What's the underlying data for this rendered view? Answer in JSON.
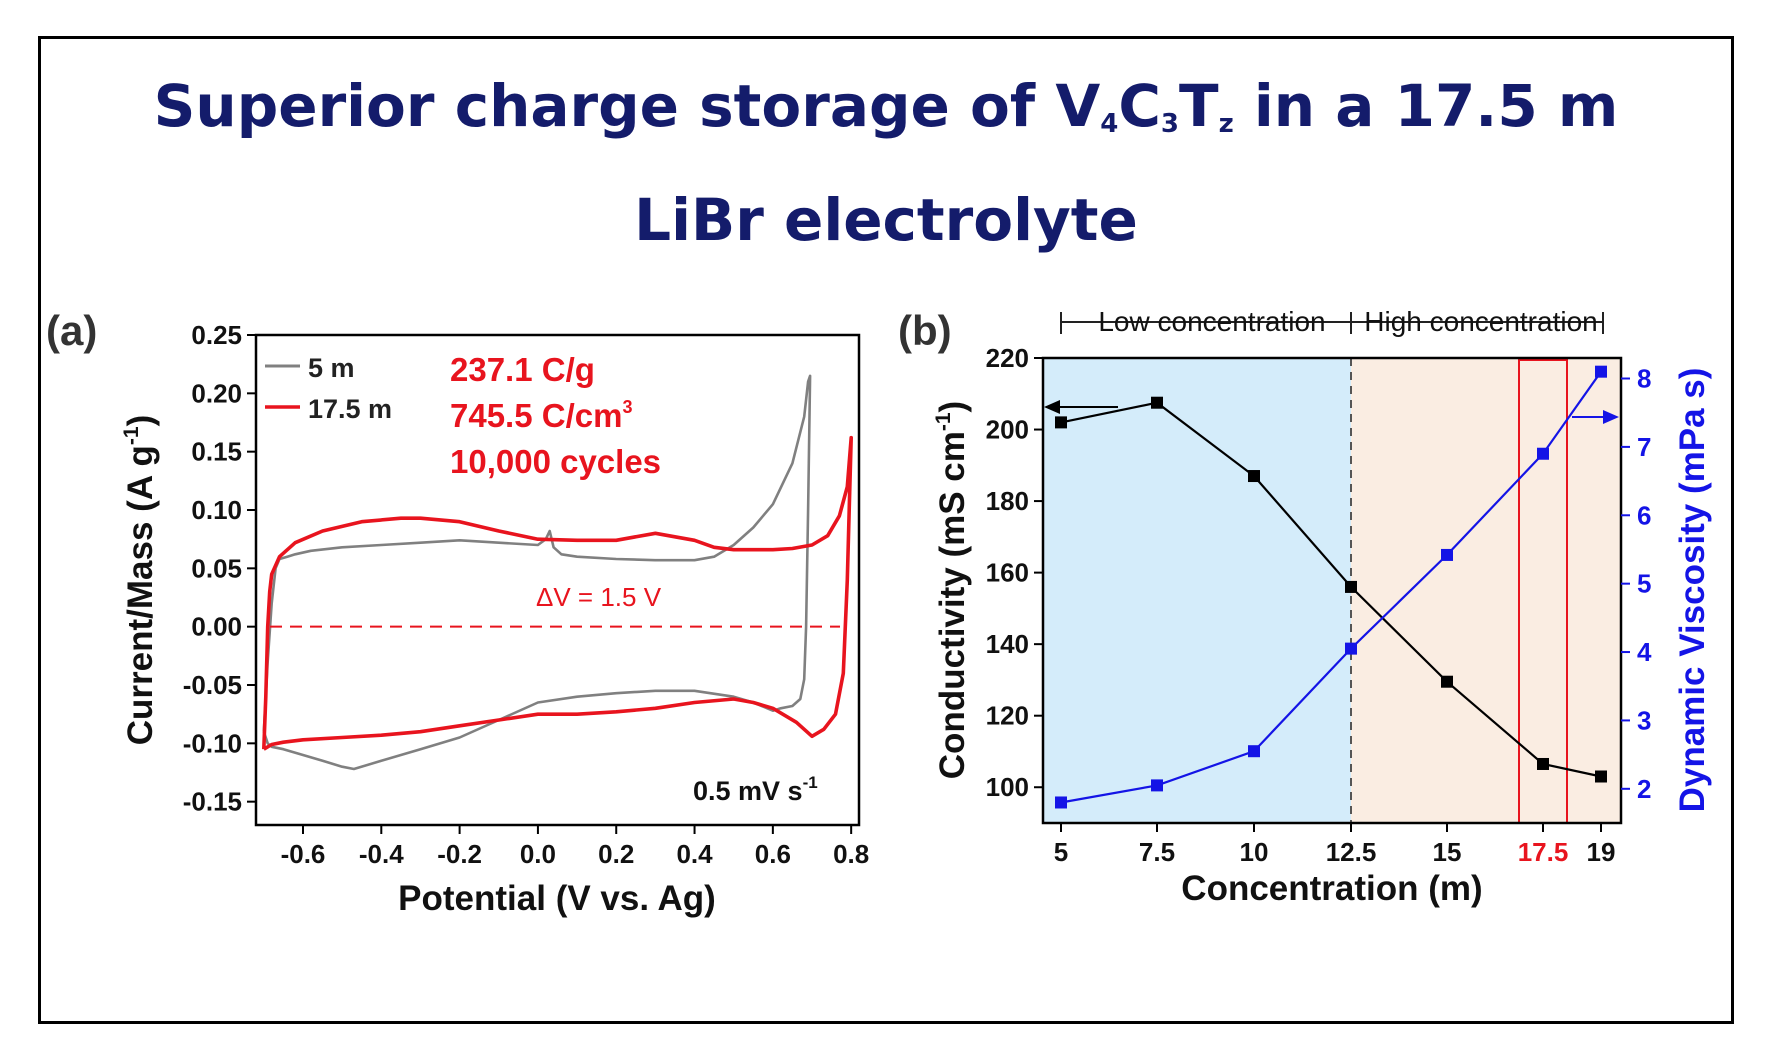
{
  "title": {
    "line1_pre": "Superior charge storage  of V",
    "sub1": "4",
    "mid1": "C",
    "sub2": "3",
    "mid2": "T",
    "sub3": "z",
    "line1_post": " in a 17.5 m",
    "line2": "LiBr electrolyte"
  },
  "colors": {
    "title": "#141c6b",
    "series_5m": "#808080",
    "series_17_5m": "#e8141e",
    "conductivity": "#000000",
    "viscosity": "#1414e6",
    "low_region": "#d4ecfa",
    "high_region": "#faede2",
    "highlight_box": "#e8141e"
  },
  "chart_data": [
    {
      "type": "line",
      "panel_label": "(a)",
      "xlabel": "Potential (V vs. Ag)",
      "ylabel": "Current/Mass (A g",
      "ylabel_sup": "-1",
      "ylabel_end": ")",
      "xlim": [
        -0.72,
        0.82
      ],
      "ylim": [
        -0.17,
        0.25
      ],
      "xticks": [
        "-0.6",
        "-0.4",
        "-0.2",
        "0.0",
        "0.2",
        "0.4",
        "0.6",
        "0.8"
      ],
      "yticks": [
        "0.25",
        "0.20",
        "0.15",
        "0.10",
        "0.05",
        "0.00",
        "-0.05",
        "-0.10",
        "-0.15"
      ],
      "legend": [
        "5 m",
        "17.5 m"
      ],
      "annotations": {
        "capacity_g": "237.1 C/g",
        "capacity_cm": "745.5 C/cm",
        "capacity_cm_sup": "3",
        "cycles": "10,000 cycles",
        "window": "ΔV = 1.5 V",
        "scan_rate": "0.5 mV s",
        "scan_rate_sup": "-1"
      },
      "series": [
        {
          "name": "5 m",
          "x": [
            -0.7,
            -0.69,
            -0.68,
            -0.67,
            -0.66,
            -0.64,
            -0.62,
            -0.58,
            -0.5,
            -0.4,
            -0.3,
            -0.2,
            -0.1,
            0.0,
            0.02,
            0.03,
            0.04,
            0.06,
            0.1,
            0.2,
            0.3,
            0.4,
            0.45,
            0.5,
            0.55,
            0.6,
            0.65,
            0.68,
            0.69,
            0.695,
            0.69,
            0.685,
            0.68,
            0.67,
            0.65,
            0.62,
            0.6,
            0.55,
            0.5,
            0.4,
            0.3,
            0.2,
            0.1,
            0.0,
            -0.1,
            -0.2,
            -0.3,
            -0.4,
            -0.47,
            -0.5,
            -0.55,
            -0.6,
            -0.65,
            -0.68,
            -0.69,
            -0.7
          ],
          "y": [
            -0.09,
            -0.03,
            0.02,
            0.05,
            0.058,
            0.06,
            0.062,
            0.065,
            0.068,
            0.07,
            0.072,
            0.074,
            0.072,
            0.07,
            0.075,
            0.082,
            0.068,
            0.062,
            0.06,
            0.058,
            0.057,
            0.057,
            0.06,
            0.07,
            0.085,
            0.105,
            0.14,
            0.18,
            0.21,
            0.215,
            0.1,
            0.0,
            -0.045,
            -0.062,
            -0.068,
            -0.07,
            -0.072,
            -0.065,
            -0.06,
            -0.055,
            -0.055,
            -0.057,
            -0.06,
            -0.065,
            -0.08,
            -0.095,
            -0.105,
            -0.115,
            -0.122,
            -0.12,
            -0.115,
            -0.11,
            -0.105,
            -0.103,
            -0.1,
            -0.09
          ]
        },
        {
          "name": "17.5 m",
          "x": [
            -0.7,
            -0.695,
            -0.69,
            -0.685,
            -0.68,
            -0.66,
            -0.62,
            -0.55,
            -0.45,
            -0.35,
            -0.3,
            -0.2,
            -0.1,
            0.0,
            0.1,
            0.2,
            0.3,
            0.4,
            0.45,
            0.5,
            0.6,
            0.65,
            0.7,
            0.74,
            0.77,
            0.79,
            0.8,
            0.795,
            0.79,
            0.785,
            0.78,
            0.76,
            0.73,
            0.7,
            0.66,
            0.6,
            0.55,
            0.5,
            0.4,
            0.3,
            0.2,
            0.1,
            0.0,
            -0.1,
            -0.2,
            -0.3,
            -0.4,
            -0.5,
            -0.6,
            -0.65,
            -0.68,
            -0.7
          ],
          "y": [
            -0.105,
            -0.06,
            0.0,
            0.03,
            0.045,
            0.06,
            0.072,
            0.082,
            0.09,
            0.093,
            0.093,
            0.09,
            0.082,
            0.075,
            0.074,
            0.074,
            0.08,
            0.074,
            0.068,
            0.066,
            0.066,
            0.067,
            0.07,
            0.078,
            0.095,
            0.12,
            0.162,
            0.1,
            0.04,
            0.0,
            -0.04,
            -0.075,
            -0.088,
            -0.094,
            -0.082,
            -0.07,
            -0.065,
            -0.062,
            -0.065,
            -0.07,
            -0.073,
            -0.075,
            -0.075,
            -0.08,
            -0.085,
            -0.09,
            -0.093,
            -0.095,
            -0.097,
            -0.099,
            -0.101,
            -0.105
          ]
        }
      ]
    },
    {
      "type": "line",
      "panel_label": "(b)",
      "xlabel": "Concentration (m)",
      "ylabel_left": "Conductivity (mS cm",
      "ylabel_left_sup": "-1",
      "ylabel_left_end": ")",
      "ylabel_right": "Dynamic Viscosity (mPa s)",
      "x_ticks": [
        "5",
        "7.5",
        "10",
        "12.5",
        "15",
        "17.5",
        "19"
      ],
      "ylim_left": [
        90,
        220
      ],
      "ylim_right": [
        1.5,
        8.3
      ],
      "yticks_left": [
        "220",
        "200",
        "180",
        "160",
        "140",
        "120",
        "100"
      ],
      "yticks_right": [
        "8",
        "7",
        "6",
        "5",
        "4",
        "3",
        "2"
      ],
      "regions": [
        "Low concentration",
        "High concentration"
      ],
      "highlight_tick": "17.5",
      "series": [
        {
          "name": "Conductivity",
          "axis": "left",
          "x": [
            5,
            7.5,
            10,
            12.5,
            15,
            17.5,
            19
          ],
          "values": [
            202,
            207.5,
            187,
            156,
            129.5,
            106.5,
            103
          ]
        },
        {
          "name": "Dynamic Viscosity",
          "axis": "right",
          "x": [
            5,
            7.5,
            10,
            12.5,
            15,
            17.5,
            19
          ],
          "values": [
            1.8,
            2.05,
            2.55,
            4.05,
            5.42,
            6.9,
            8.1
          ]
        }
      ]
    }
  ]
}
